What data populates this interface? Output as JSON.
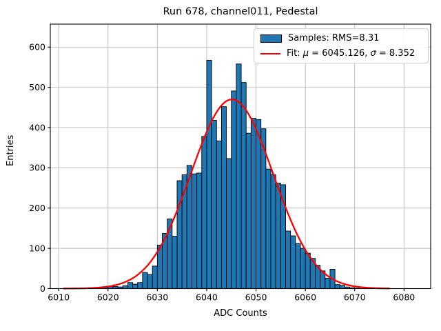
{
  "figure": {
    "title": "Run 678, channel011, Pedestal",
    "background": "#ffffff"
  },
  "legend": {
    "samples_label": "Samples: RMS=8.31",
    "fit_prefix": "Fit: ",
    "fit_mu_symbol": "μ",
    "fit_mu_value": " = 6045.126, ",
    "fit_sigma_symbol": "σ",
    "fit_sigma_value": " = 8.352"
  },
  "chart_data": {
    "type": "bar",
    "subtype": "histogram-with-gaussian-fit",
    "title": "Run 678, channel011, Pedestal",
    "xlabel": "ADC Counts",
    "ylabel": "Entries",
    "xlim": [
      6008.3,
      6085.4
    ],
    "ylim": [
      0,
      657
    ],
    "xticks": [
      6010,
      6020,
      6030,
      6040,
      6050,
      6060,
      6070,
      6080
    ],
    "yticks": [
      0,
      100,
      200,
      300,
      400,
      500,
      600
    ],
    "grid": true,
    "grid_color": "#b8b8b8",
    "legend_position": "upper right",
    "series": [
      {
        "name": "Samples: RMS=8.31",
        "kind": "histogram",
        "color": "#1f77b4",
        "edge_color": "#000000",
        "bin_start": 6014,
        "bin_width": 1,
        "values": [
          1,
          1,
          2,
          2,
          3,
          3,
          5,
          5,
          4,
          7,
          15,
          11,
          15,
          40,
          35,
          56,
          108,
          137,
          173,
          130,
          268,
          283,
          306,
          285,
          287,
          378,
          567,
          418,
          367,
          452,
          323,
          491,
          558,
          512,
          386,
          423,
          420,
          397,
          297,
          283,
          262,
          258,
          143,
          131,
          112,
          100,
          88,
          75,
          58,
          44,
          26,
          48,
          10,
          8,
          4,
          2,
          1,
          0,
          0,
          0,
          2
        ]
      },
      {
        "name": "Fit: μ = 6045.126, σ = 8.352",
        "kind": "gaussian",
        "color": "#ff0000",
        "mu": 6045.126,
        "sigma": 8.352,
        "amplitude": 470,
        "x_range": [
          6011,
          6077
        ]
      }
    ]
  }
}
